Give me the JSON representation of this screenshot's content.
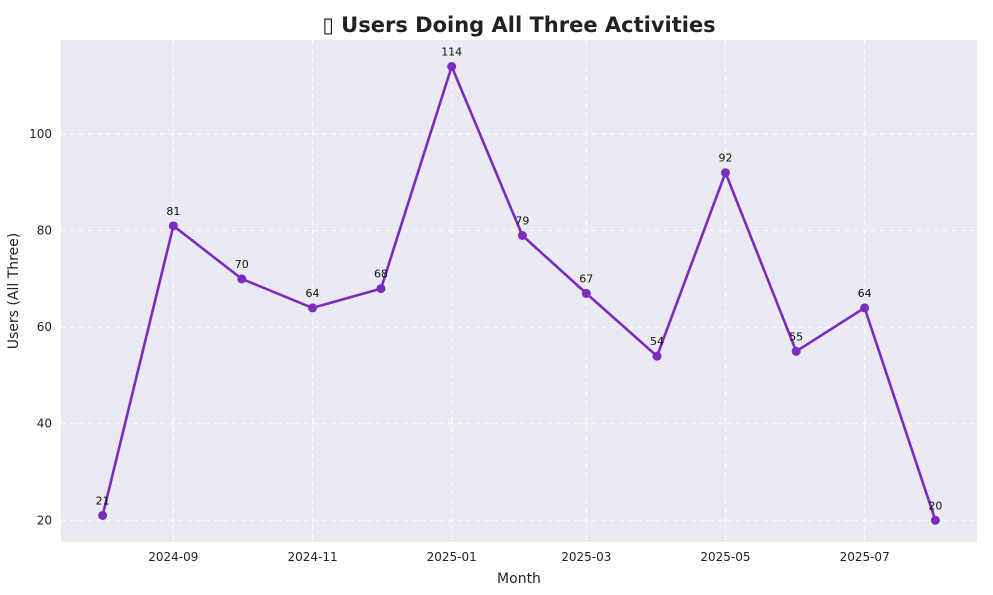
{
  "chart_data": {
    "type": "line",
    "title": "▯ Users Doing All Three Activities",
    "xlabel": "Month",
    "ylabel": "Users (All Three)",
    "x": [
      "2024-08",
      "2024-09",
      "2024-10",
      "2024-11",
      "2024-12",
      "2025-01",
      "2025-02",
      "2025-03",
      "2025-04",
      "2025-05",
      "2025-06",
      "2025-07",
      "2025-08"
    ],
    "values": [
      21,
      81,
      70,
      64,
      68,
      114,
      79,
      67,
      54,
      92,
      55,
      64,
      20
    ],
    "data_labels": [
      "21",
      "81",
      "70",
      "64",
      "68",
      "114",
      "79",
      "67",
      "54",
      "92",
      "55",
      "64",
      "20"
    ],
    "x_ticks": [
      "2024-09",
      "2024-11",
      "2025-01",
      "2025-03",
      "2025-05",
      "2025-07"
    ],
    "y_ticks": [
      20,
      40,
      60,
      80,
      100
    ],
    "ylim": [
      15.5,
      119.5
    ],
    "grid": true,
    "markers": true,
    "colors": {
      "line": "#7b2cbf",
      "plot_background": "#eaeaf2",
      "grid": "#ffffff"
    }
  }
}
